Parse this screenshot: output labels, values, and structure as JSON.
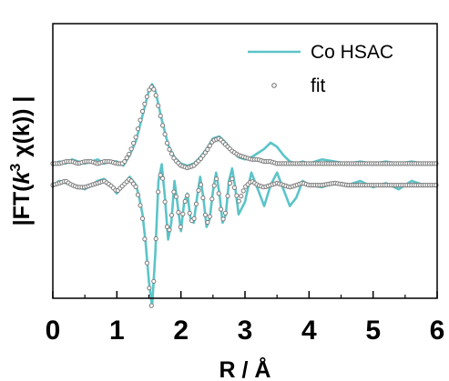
{
  "chart_data": {
    "type": "line",
    "xlabel": "R / Å",
    "ylabel_parts": [
      "|FT(",
      "k",
      "3",
      " χ(k)) |"
    ],
    "xlim": [
      0,
      6
    ],
    "xticks": [
      0,
      1,
      2,
      3,
      4,
      5,
      6
    ],
    "tick_labels": [
      "0",
      "1",
      "2",
      "3",
      "4",
      "5",
      "6"
    ],
    "grid": false,
    "legend_position": "top-right",
    "colors": {
      "data": "#5bc4c8",
      "fit_marker": "#7a7a7a",
      "axes": "#000000"
    },
    "series": [
      {
        "name": "Co HSAC",
        "component": "magnitude",
        "x": [
          0,
          0.1,
          0.2,
          0.3,
          0.4,
          0.5,
          0.6,
          0.7,
          0.8,
          0.9,
          1.0,
          1.1,
          1.2,
          1.3,
          1.4,
          1.5,
          1.55,
          1.6,
          1.7,
          1.8,
          1.9,
          2.0,
          2.1,
          2.2,
          2.3,
          2.4,
          2.5,
          2.6,
          2.7,
          2.8,
          2.9,
          3.0,
          3.1,
          3.2,
          3.3,
          3.4,
          3.5,
          3.6,
          3.7,
          3.8,
          3.9,
          4.0,
          4.2,
          4.4,
          4.6,
          4.8,
          5.0,
          5.2,
          5.4,
          5.6,
          5.8,
          6.0
        ],
        "y": [
          0.36,
          0.38,
          0.37,
          0.39,
          0.38,
          0.37,
          0.38,
          0.39,
          0.37,
          0.38,
          0.38,
          0.36,
          0.41,
          0.48,
          0.6,
          0.72,
          0.75,
          0.72,
          0.58,
          0.46,
          0.4,
          0.37,
          0.36,
          0.37,
          0.4,
          0.44,
          0.49,
          0.5,
          0.47,
          0.43,
          0.4,
          0.39,
          0.4,
          0.42,
          0.44,
          0.47,
          0.45,
          0.41,
          0.38,
          0.37,
          0.38,
          0.37,
          0.39,
          0.38,
          0.37,
          0.38,
          0.37,
          0.38,
          0.37,
          0.38,
          0.37,
          0.37
        ]
      },
      {
        "name": "fit",
        "component": "magnitude",
        "x": [
          0,
          0.1,
          0.2,
          0.3,
          0.4,
          0.5,
          0.6,
          0.7,
          0.8,
          0.9,
          1.0,
          1.1,
          1.2,
          1.3,
          1.4,
          1.5,
          1.55,
          1.6,
          1.7,
          1.8,
          1.9,
          2.0,
          2.1,
          2.2,
          2.3,
          2.4,
          2.5,
          2.6,
          2.7,
          2.8,
          2.9,
          3.0,
          3.1,
          3.2,
          3.3,
          3.4,
          3.5,
          3.6,
          3.7,
          3.8,
          3.9,
          4.0,
          4.2,
          4.4,
          4.6,
          4.8,
          5.0,
          5.2,
          5.4,
          5.6,
          5.8,
          6.0
        ],
        "y": [
          0.37,
          0.37,
          0.38,
          0.38,
          0.37,
          0.38,
          0.38,
          0.37,
          0.38,
          0.38,
          0.37,
          0.37,
          0.42,
          0.5,
          0.62,
          0.72,
          0.74,
          0.71,
          0.57,
          0.45,
          0.39,
          0.36,
          0.35,
          0.36,
          0.39,
          0.43,
          0.48,
          0.49,
          0.46,
          0.43,
          0.41,
          0.4,
          0.39,
          0.39,
          0.38,
          0.38,
          0.37,
          0.37,
          0.37,
          0.37,
          0.37,
          0.37,
          0.37,
          0.37,
          0.37,
          0.37,
          0.37,
          0.37,
          0.37,
          0.37,
          0.37,
          0.37
        ]
      },
      {
        "name": "Co HSAC",
        "component": "imaginary",
        "x": [
          0,
          0.1,
          0.2,
          0.3,
          0.4,
          0.5,
          0.6,
          0.7,
          0.8,
          0.9,
          1.0,
          1.1,
          1.2,
          1.3,
          1.35,
          1.4,
          1.45,
          1.5,
          1.55,
          1.6,
          1.65,
          1.7,
          1.75,
          1.8,
          1.85,
          1.9,
          1.95,
          2.0,
          2.05,
          2.1,
          2.15,
          2.2,
          2.25,
          2.3,
          2.35,
          2.4,
          2.45,
          2.5,
          2.55,
          2.6,
          2.65,
          2.7,
          2.75,
          2.8,
          2.85,
          2.9,
          3.0,
          3.1,
          3.2,
          3.3,
          3.4,
          3.5,
          3.6,
          3.7,
          3.8,
          3.9,
          4.0,
          4.2,
          4.4,
          4.6,
          4.8,
          5.0,
          5.2,
          5.4,
          5.6,
          5.8,
          6.0
        ],
        "y": [
          0.28,
          0.3,
          0.29,
          0.28,
          0.27,
          0.26,
          0.28,
          0.3,
          0.31,
          0.28,
          0.24,
          0.28,
          0.32,
          0.28,
          0.22,
          0.14,
          0.0,
          -0.18,
          -0.3,
          -0.05,
          0.3,
          0.38,
          0.22,
          0.02,
          0.1,
          0.3,
          0.18,
          0.06,
          0.2,
          0.24,
          0.12,
          0.1,
          0.22,
          0.32,
          0.22,
          0.08,
          0.12,
          0.25,
          0.34,
          0.24,
          0.1,
          0.14,
          0.3,
          0.36,
          0.26,
          0.14,
          0.2,
          0.34,
          0.26,
          0.18,
          0.28,
          0.34,
          0.26,
          0.18,
          0.22,
          0.3,
          0.28,
          0.27,
          0.29,
          0.28,
          0.3,
          0.27,
          0.29,
          0.26,
          0.3,
          0.28,
          0.28
        ]
      },
      {
        "name": "fit",
        "component": "imaginary",
        "x": [
          0,
          0.1,
          0.2,
          0.3,
          0.4,
          0.5,
          0.6,
          0.7,
          0.8,
          0.9,
          1.0,
          1.1,
          1.2,
          1.3,
          1.35,
          1.4,
          1.45,
          1.5,
          1.55,
          1.6,
          1.65,
          1.7,
          1.75,
          1.8,
          1.85,
          1.9,
          1.95,
          2.0,
          2.05,
          2.1,
          2.15,
          2.2,
          2.25,
          2.3,
          2.35,
          2.4,
          2.45,
          2.5,
          2.55,
          2.6,
          2.65,
          2.7,
          2.75,
          2.8,
          2.85,
          2.9,
          3.0,
          3.1,
          3.2,
          3.3,
          3.4,
          3.5,
          3.6,
          3.7,
          3.8,
          3.9,
          4.0,
          4.2,
          4.4,
          4.6,
          4.8,
          5.0,
          5.2,
          5.4,
          5.6,
          5.8,
          6.0
        ],
        "y": [
          0.28,
          0.29,
          0.3,
          0.28,
          0.27,
          0.27,
          0.28,
          0.29,
          0.3,
          0.28,
          0.25,
          0.28,
          0.31,
          0.27,
          0.21,
          0.12,
          -0.02,
          -0.2,
          -0.32,
          -0.04,
          0.28,
          0.36,
          0.2,
          0.03,
          0.12,
          0.28,
          0.17,
          0.07,
          0.19,
          0.23,
          0.11,
          0.11,
          0.21,
          0.3,
          0.21,
          0.09,
          0.13,
          0.25,
          0.32,
          0.22,
          0.11,
          0.15,
          0.28,
          0.31,
          0.25,
          0.2,
          0.27,
          0.3,
          0.28,
          0.27,
          0.28,
          0.29,
          0.28,
          0.27,
          0.28,
          0.29,
          0.28,
          0.28,
          0.29,
          0.28,
          0.28,
          0.28,
          0.28,
          0.28,
          0.28,
          0.28,
          0.28
        ]
      }
    ]
  }
}
